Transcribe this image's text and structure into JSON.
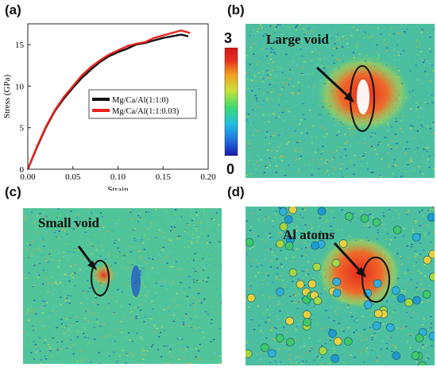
{
  "panels": {
    "a": "(a)",
    "b": "(b)",
    "c": "(c)",
    "d": "(d)"
  },
  "annotations": {
    "large_void": "Large void",
    "small_void": "Small void",
    "al_atoms": "Al atoms"
  },
  "colorbar": {
    "max": "3",
    "min": "0",
    "colors": [
      "#1a1aa8",
      "#1f6fe0",
      "#20c0e0",
      "#3ddc6e",
      "#c8e23a",
      "#f4a020",
      "#e83020",
      "#d01818"
    ]
  },
  "chart_data": {
    "type": "line",
    "xlabel": "Strain",
    "ylabel": "Stress (GPa)",
    "xlim": [
      0.0,
      0.2
    ],
    "ylim": [
      0,
      17.5
    ],
    "xticks": [
      "0.00",
      "0.05",
      "0.10",
      "0.15",
      "0.20"
    ],
    "yticks": [
      "0",
      "5",
      "10",
      "15"
    ],
    "xtick_values": [
      0.0,
      0.05,
      0.1,
      0.15,
      0.2
    ],
    "ytick_values": [
      0,
      5,
      10,
      15
    ],
    "legend_position": "center-right",
    "series": [
      {
        "name": "Mg/Ca/Al(1:1:0)",
        "color": "#111111",
        "x": [
          0.0,
          0.01,
          0.02,
          0.03,
          0.04,
          0.05,
          0.06,
          0.07,
          0.08,
          0.09,
          0.1,
          0.11,
          0.12,
          0.13,
          0.14,
          0.15,
          0.16,
          0.17,
          0.178
        ],
        "y": [
          0.0,
          2.6,
          5.0,
          7.0,
          8.5,
          9.8,
          11.0,
          12.0,
          12.9,
          13.6,
          14.1,
          14.5,
          15.0,
          15.2,
          15.5,
          15.8,
          16.0,
          16.2,
          16.0
        ]
      },
      {
        "name": "Mg/Ca/Al(1:1:0.03)",
        "color": "#e8221e",
        "x": [
          0.0,
          0.01,
          0.02,
          0.03,
          0.04,
          0.05,
          0.06,
          0.07,
          0.08,
          0.09,
          0.1,
          0.11,
          0.12,
          0.13,
          0.14,
          0.15,
          0.16,
          0.17,
          0.18
        ],
        "y": [
          0.0,
          2.7,
          5.1,
          7.1,
          8.7,
          10.0,
          11.3,
          12.3,
          13.1,
          13.8,
          14.3,
          14.8,
          15.1,
          15.3,
          15.8,
          16.1,
          16.4,
          16.7,
          16.4
        ]
      }
    ]
  }
}
